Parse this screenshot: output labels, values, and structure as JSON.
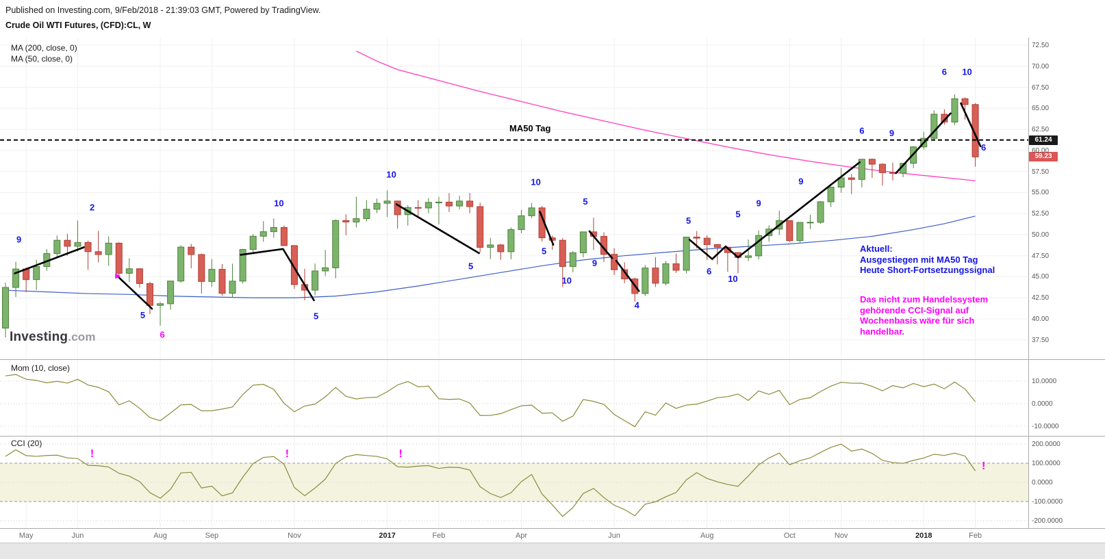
{
  "header": {
    "published_line": "Published on Investing.com, 9/Feb/2018 - 21:39:03 GMT, Powered by TradingView.",
    "title": "Crude Oil WTI Futures, (CFD):CL, W"
  },
  "watermark": {
    "brand": "Investing",
    "tld": ".com"
  },
  "colors": {
    "up_fill": "#7db46c",
    "up_border": "#4f813d",
    "down_fill": "#d75f56",
    "down_border": "#b13f35",
    "ma200": "#ff49c2",
    "ma50": "#3d5fc9",
    "annotation_blue": "#1515e6",
    "magenta": "#ff00ff",
    "indicator_line": "#8b8b3a",
    "cci_band": "#f3f3e0",
    "hline": "#000000",
    "level_badge_bg": "#1a1a1a",
    "last_badge_bg": "#dd5555",
    "grid": "#f0f0f0",
    "separator": "#ababab"
  },
  "main_panel": {
    "legend": [
      "MA (200, close, 0)",
      "MA (50, close, 0)"
    ],
    "hline_label": "MA50 Tag",
    "level_badge": "61.24",
    "last_price_badge": "59.23",
    "notes": {
      "blue": "Aktuell:\nAusgestiegen mit MA50 Tag\nHeute Short-Fortsetzungssignal",
      "magenta": "Das nicht zum Handelssystem\ngehörende CCI-Signal auf\nWochenbasis wäre für sich\nhandelbar."
    }
  },
  "mom_panel": {
    "label": "Mom (10, close)"
  },
  "cci_panel": {
    "label": "CCI (20)"
  },
  "chart_data": {
    "type": "candlestick",
    "symbol": "Crude Oil WTI Futures (CFD):CL",
    "timeframe": "W",
    "price_range": [
      37.5,
      72.5
    ],
    "hline_value": 61.24,
    "last_close": 59.23,
    "price_ticks": [
      {
        "v": 72.5,
        "l": "72.50"
      },
      {
        "v": 70,
        "l": "70.00"
      },
      {
        "v": 67.5,
        "l": "67.50"
      },
      {
        "v": 65,
        "l": "65.00"
      },
      {
        "v": 62.5,
        "l": "62.50"
      },
      {
        "v": 60,
        "l": "60.00"
      },
      {
        "v": 57.5,
        "l": "57.50"
      },
      {
        "v": 55,
        "l": "55.00"
      },
      {
        "v": 52.5,
        "l": "52.50"
      },
      {
        "v": 50,
        "l": "50.00"
      },
      {
        "v": 47.5,
        "l": "47.50"
      },
      {
        "v": 45,
        "l": "45.00"
      },
      {
        "v": 42.5,
        "l": "42.50"
      },
      {
        "v": 40,
        "l": "40.00"
      },
      {
        "v": 37.5,
        "l": "37.50"
      }
    ],
    "candles": [
      [
        38.9,
        44.3,
        37.8,
        43.73
      ],
      [
        43.73,
        46.78,
        42.6,
        45.92
      ],
      [
        45.92,
        46.1,
        43.16,
        44.66
      ],
      [
        44.66,
        47.02,
        43.42,
        46.21
      ],
      [
        46.21,
        48.28,
        45.7,
        47.75
      ],
      [
        47.75,
        49.9,
        47.2,
        49.33
      ],
      [
        49.33,
        50.1,
        47.5,
        48.62
      ],
      [
        48.62,
        51.67,
        48.0,
        49.07
      ],
      [
        49.07,
        49.3,
        45.83,
        47.98
      ],
      [
        47.98,
        50.45,
        46.7,
        47.64
      ],
      [
        47.64,
        49.8,
        46.3,
        48.99
      ],
      [
        48.99,
        49.1,
        44.85,
        45.41
      ],
      [
        45.41,
        47.2,
        44.4,
        45.95
      ],
      [
        45.95,
        46.0,
        43.7,
        44.19
      ],
      [
        44.19,
        44.4,
        40.57,
        41.6
      ],
      [
        41.6,
        42.0,
        39.19,
        41.8
      ],
      [
        41.8,
        44.5,
        41.1,
        44.49
      ],
      [
        44.49,
        48.75,
        44.3,
        48.52
      ],
      [
        48.52,
        48.9,
        46.0,
        47.64
      ],
      [
        47.64,
        47.75,
        43.0,
        44.44
      ],
      [
        44.44,
        47.1,
        43.8,
        45.88
      ],
      [
        45.88,
        46.5,
        42.74,
        43.03
      ],
      [
        43.03,
        46.55,
        42.55,
        44.48
      ],
      [
        44.48,
        48.32,
        44.2,
        48.24
      ],
      [
        48.24,
        50.07,
        47.7,
        49.81
      ],
      [
        49.81,
        51.6,
        49.15,
        50.35
      ],
      [
        50.35,
        51.93,
        49.62,
        50.85
      ],
      [
        50.85,
        51.1,
        48.65,
        48.7
      ],
      [
        48.7,
        48.75,
        43.57,
        44.07
      ],
      [
        44.07,
        45.95,
        42.2,
        43.41
      ],
      [
        43.41,
        46.58,
        42.8,
        45.69
      ],
      [
        45.69,
        48.2,
        45.1,
        46.06
      ],
      [
        46.06,
        51.8,
        44.82,
        51.68
      ],
      [
        51.68,
        52.42,
        49.93,
        51.5
      ],
      [
        51.5,
        54.51,
        50.84,
        51.9
      ],
      [
        51.9,
        54.1,
        51.57,
        53.02
      ],
      [
        53.02,
        54.28,
        52.57,
        53.72
      ],
      [
        53.72,
        55.24,
        52.11,
        53.99
      ],
      [
        53.99,
        54.03,
        50.71,
        52.37
      ],
      [
        52.37,
        53.48,
        51.08,
        53.22
      ],
      [
        53.22,
        54.08,
        52.17,
        53.17
      ],
      [
        53.17,
        54.34,
        52.54,
        53.83
      ],
      [
        53.83,
        54.49,
        51.22,
        53.86
      ],
      [
        53.86,
        54.94,
        52.68,
        53.4
      ],
      [
        53.4,
        54.61,
        53.01,
        53.99
      ],
      [
        53.99,
        54.94,
        52.54,
        53.33
      ],
      [
        53.33,
        53.8,
        47.9,
        48.49
      ],
      [
        48.49,
        49.62,
        47.09,
        48.78
      ],
      [
        48.78,
        48.9,
        47.01,
        47.97
      ],
      [
        47.97,
        50.85,
        47.08,
        50.6
      ],
      [
        50.6,
        52.94,
        50.18,
        52.24
      ],
      [
        52.24,
        53.76,
        51.96,
        53.18
      ],
      [
        53.18,
        53.4,
        49.2,
        49.62
      ],
      [
        49.62,
        49.9,
        48.2,
        49.33
      ],
      [
        49.33,
        49.6,
        43.76,
        46.22
      ],
      [
        46.22,
        48.07,
        45.52,
        47.84
      ],
      [
        47.84,
        50.22,
        47.3,
        50.33
      ],
      [
        50.33,
        52.0,
        48.18,
        49.8
      ],
      [
        49.8,
        50.28,
        46.74,
        47.66
      ],
      [
        47.66,
        48.4,
        45.2,
        45.83
      ],
      [
        45.83,
        46.71,
        44.22,
        44.74
      ],
      [
        44.74,
        44.9,
        42.05,
        43.01
      ],
      [
        43.01,
        46.4,
        42.71,
        46.04
      ],
      [
        46.04,
        47.32,
        43.78,
        44.23
      ],
      [
        44.23,
        46.88,
        43.96,
        46.54
      ],
      [
        46.54,
        47.74,
        45.45,
        45.77
      ],
      [
        45.77,
        49.72,
        45.4,
        49.71
      ],
      [
        49.71,
        50.43,
        48.37,
        49.58
      ],
      [
        49.58,
        49.93,
        46.98,
        48.82
      ],
      [
        48.82,
        48.9,
        46.46,
        48.51
      ],
      [
        48.51,
        48.6,
        45.58,
        47.87
      ],
      [
        47.87,
        47.9,
        45.4,
        47.29
      ],
      [
        47.29,
        49.42,
        46.86,
        47.48
      ],
      [
        47.48,
        50.5,
        47.07,
        49.89
      ],
      [
        49.89,
        51.11,
        49.16,
        50.66
      ],
      [
        50.66,
        52.86,
        49.96,
        51.67
      ],
      [
        51.67,
        51.7,
        49.1,
        49.29
      ],
      [
        49.29,
        51.49,
        49.08,
        51.45
      ],
      [
        51.45,
        52.37,
        50.66,
        51.47
      ],
      [
        51.47,
        53.98,
        51.29,
        53.9
      ],
      [
        53.9,
        55.69,
        53.28,
        55.64
      ],
      [
        55.64,
        57.92,
        54.97,
        56.74
      ],
      [
        56.74,
        57.2,
        54.81,
        56.55
      ],
      [
        56.55,
        58.99,
        55.6,
        58.95
      ],
      [
        58.95,
        59.05,
        56.75,
        58.36
      ],
      [
        58.36,
        58.47,
        55.82,
        57.36
      ],
      [
        57.36,
        58.56,
        56.43,
        57.3
      ],
      [
        57.3,
        58.53,
        56.82,
        58.47
      ],
      [
        58.47,
        60.51,
        57.89,
        60.42
      ],
      [
        60.42,
        62.21,
        60.1,
        61.44
      ],
      [
        61.44,
        64.77,
        61.15,
        64.3
      ],
      [
        64.3,
        64.89,
        63.06,
        63.37
      ],
      [
        63.37,
        66.66,
        63.0,
        66.14
      ],
      [
        66.14,
        66.3,
        63.67,
        65.45
      ],
      [
        65.45,
        65.62,
        58.07,
        59.23
      ]
    ],
    "pre_candles": [
      [
        41.5,
        38.5,
        40.0
      ],
      [
        37.2,
        34.3,
        35.6
      ],
      [
        36.3,
        33.5,
        34.7
      ],
      [
        39.0,
        36.7,
        38.1
      ],
      [
        38.3,
        35.6,
        37.0
      ],
      [
        38.4,
        32.1,
        33.2
      ],
      [
        33.0,
        29.2,
        29.4
      ],
      [
        32.7,
        28.9,
        32.2
      ],
      [
        34.8,
        31.6,
        33.6
      ],
      [
        34.4,
        29.6,
        30.9
      ],
      [
        33.2,
        29.5,
        31.4
      ],
      [
        34.6,
        30.9,
        33.0
      ],
      [
        34.9,
        31.8,
        33.8
      ],
      [
        36.1,
        33.7,
        35.9
      ],
      [
        39.0,
        36.4,
        38.5
      ],
      [
        41.2,
        38.2,
        39.4
      ],
      [
        41.9,
        38.9,
        39.5
      ],
      [
        39.6,
        36.2,
        38.3
      ],
      [
        41.0,
        37.5,
        39.7
      ],
      [
        42.4,
        39.3,
        40.4
      ]
    ],
    "ma200_points": [
      [
        34,
        71.8
      ],
      [
        36,
        70.6
      ],
      [
        38,
        69.6
      ],
      [
        42,
        68.3
      ],
      [
        46,
        67.0
      ],
      [
        50,
        65.8
      ],
      [
        54,
        64.6
      ],
      [
        58,
        63.5
      ],
      [
        62,
        62.4
      ],
      [
        66,
        61.4
      ],
      [
        70,
        60.4
      ],
      [
        74,
        59.5
      ],
      [
        78,
        58.7
      ],
      [
        82,
        58.0
      ],
      [
        86,
        57.4
      ],
      [
        90,
        56.9
      ],
      [
        94,
        56.4
      ]
    ],
    "ma50_points": [
      [
        0,
        43.4
      ],
      [
        4,
        43.2
      ],
      [
        8,
        43.0
      ],
      [
        12,
        42.9
      ],
      [
        16,
        42.7
      ],
      [
        20,
        42.6
      ],
      [
        24,
        42.5
      ],
      [
        28,
        42.5
      ],
      [
        32,
        42.7
      ],
      [
        36,
        43.2
      ],
      [
        40,
        43.9
      ],
      [
        44,
        44.7
      ],
      [
        48,
        45.5
      ],
      [
        52,
        46.3
      ],
      [
        56,
        47.0
      ],
      [
        60,
        47.5
      ],
      [
        64,
        47.9
      ],
      [
        68,
        48.3
      ],
      [
        72,
        48.6
      ],
      [
        76,
        48.9
      ],
      [
        80,
        49.3
      ],
      [
        84,
        49.8
      ],
      [
        88,
        50.6
      ],
      [
        91,
        51.3
      ],
      [
        94,
        52.2
      ]
    ],
    "trade_lines": [
      [
        [
          0.9,
          45.4
        ],
        [
          7.6,
          48.5
        ]
      ],
      [
        [
          11.0,
          44.9
        ],
        [
          14.2,
          41.2
        ]
      ],
      [
        [
          22.8,
          47.6
        ],
        [
          26.9,
          48.3
        ],
        [
          29.9,
          42.2
        ]
      ],
      [
        [
          37.9,
          53.6
        ],
        [
          45.9,
          47.8
        ]
      ],
      [
        [
          51.8,
          52.7
        ],
        [
          53.1,
          48.8
        ]
      ],
      [
        [
          56.6,
          50.4
        ],
        [
          58.8,
          47.2
        ]
      ],
      [
        [
          59.2,
          46.9
        ],
        [
          61.4,
          43.3
        ]
      ],
      [
        [
          66.3,
          49.4
        ],
        [
          68.5,
          47.1
        ],
        [
          69.8,
          48.6
        ],
        [
          71.0,
          47.3
        ]
      ],
      [
        [
          71.0,
          47.3
        ],
        [
          82.8,
          58.6
        ]
      ],
      [
        [
          86.3,
          57.3
        ],
        [
          91.6,
          64.4
        ]
      ],
      [
        [
          92.6,
          65.6
        ],
        [
          94.5,
          60.5
        ]
      ]
    ],
    "entry_marker": {
      "i": 10.9,
      "p": 45.0
    },
    "annotations": [
      {
        "t": "9",
        "i": 1.3,
        "p": 49.4
      },
      {
        "t": "2",
        "i": 8.4,
        "p": 53.2
      },
      {
        "t": "5",
        "i": 13.3,
        "p": 40.4
      },
      {
        "t": "6",
        "i": 15.2,
        "p": 38.1,
        "c": "m"
      },
      {
        "t": "10",
        "i": 26.5,
        "p": 53.7
      },
      {
        "t": "5",
        "i": 30.1,
        "p": 40.3
      },
      {
        "t": "10",
        "i": 37.4,
        "p": 57.1
      },
      {
        "t": "5",
        "i": 45.1,
        "p": 46.2
      },
      {
        "t": "10",
        "i": 51.4,
        "p": 56.2
      },
      {
        "t": "5",
        "i": 52.2,
        "p": 48.0
      },
      {
        "t": "10",
        "i": 54.4,
        "p": 44.5
      },
      {
        "t": "5",
        "i": 56.2,
        "p": 53.9
      },
      {
        "t": "9",
        "i": 57.1,
        "p": 46.6
      },
      {
        "t": "4",
        "i": 61.2,
        "p": 41.6
      },
      {
        "t": "5",
        "i": 66.2,
        "p": 51.6
      },
      {
        "t": "6",
        "i": 68.2,
        "p": 45.6
      },
      {
        "t": "10",
        "i": 70.5,
        "p": 44.7
      },
      {
        "t": "5",
        "i": 71.0,
        "p": 52.4
      },
      {
        "t": "9",
        "i": 73.0,
        "p": 53.7
      },
      {
        "t": "9",
        "i": 77.1,
        "p": 56.3
      },
      {
        "t": "6",
        "i": 83.0,
        "p": 62.3
      },
      {
        "t": "9",
        "i": 85.9,
        "p": 62.0
      },
      {
        "t": "6",
        "i": 91.0,
        "p": 69.3
      },
      {
        "t": "10",
        "i": 93.2,
        "p": 69.3
      },
      {
        "t": "6",
        "i": 94.8,
        "p": 60.3
      }
    ],
    "mom": {
      "period": 10,
      "ticks": [
        {
          "v": 10,
          "l": "10.0000"
        },
        {
          "v": 0,
          "l": "0.0000"
        },
        {
          "v": -10,
          "l": "-10.0000"
        }
      ]
    },
    "cci": {
      "period": 20,
      "band": [
        -100,
        100
      ],
      "ticks": [
        {
          "v": 200,
          "l": "200.0000"
        },
        {
          "v": 100,
          "l": "100.0000"
        },
        {
          "v": 0,
          "l": "0.0000"
        },
        {
          "v": -100,
          "l": "-100.0000"
        },
        {
          "v": -200,
          "l": "-200.0000"
        }
      ],
      "marks": [
        {
          "i": 8.4,
          "v": 150
        },
        {
          "i": 27.3,
          "v": 150
        },
        {
          "i": 38.3,
          "v": 150
        },
        {
          "i": 94.8,
          "v": 85
        }
      ]
    },
    "time_labels": [
      {
        "i": 2,
        "l": "May"
      },
      {
        "i": 7,
        "l": "Jun"
      },
      {
        "i": 15,
        "l": "Aug"
      },
      {
        "i": 20,
        "l": "Sep"
      },
      {
        "i": 28,
        "l": "Nov"
      },
      {
        "i": 37,
        "l": "2017",
        "y": true
      },
      {
        "i": 42,
        "l": "Feb"
      },
      {
        "i": 50,
        "l": "Apr"
      },
      {
        "i": 59,
        "l": "Jun"
      },
      {
        "i": 68,
        "l": "Aug"
      },
      {
        "i": 76,
        "l": "Oct"
      },
      {
        "i": 81,
        "l": "Nov"
      },
      {
        "i": 89,
        "l": "2018",
        "y": true
      },
      {
        "i": 94,
        "l": "Feb"
      }
    ]
  }
}
